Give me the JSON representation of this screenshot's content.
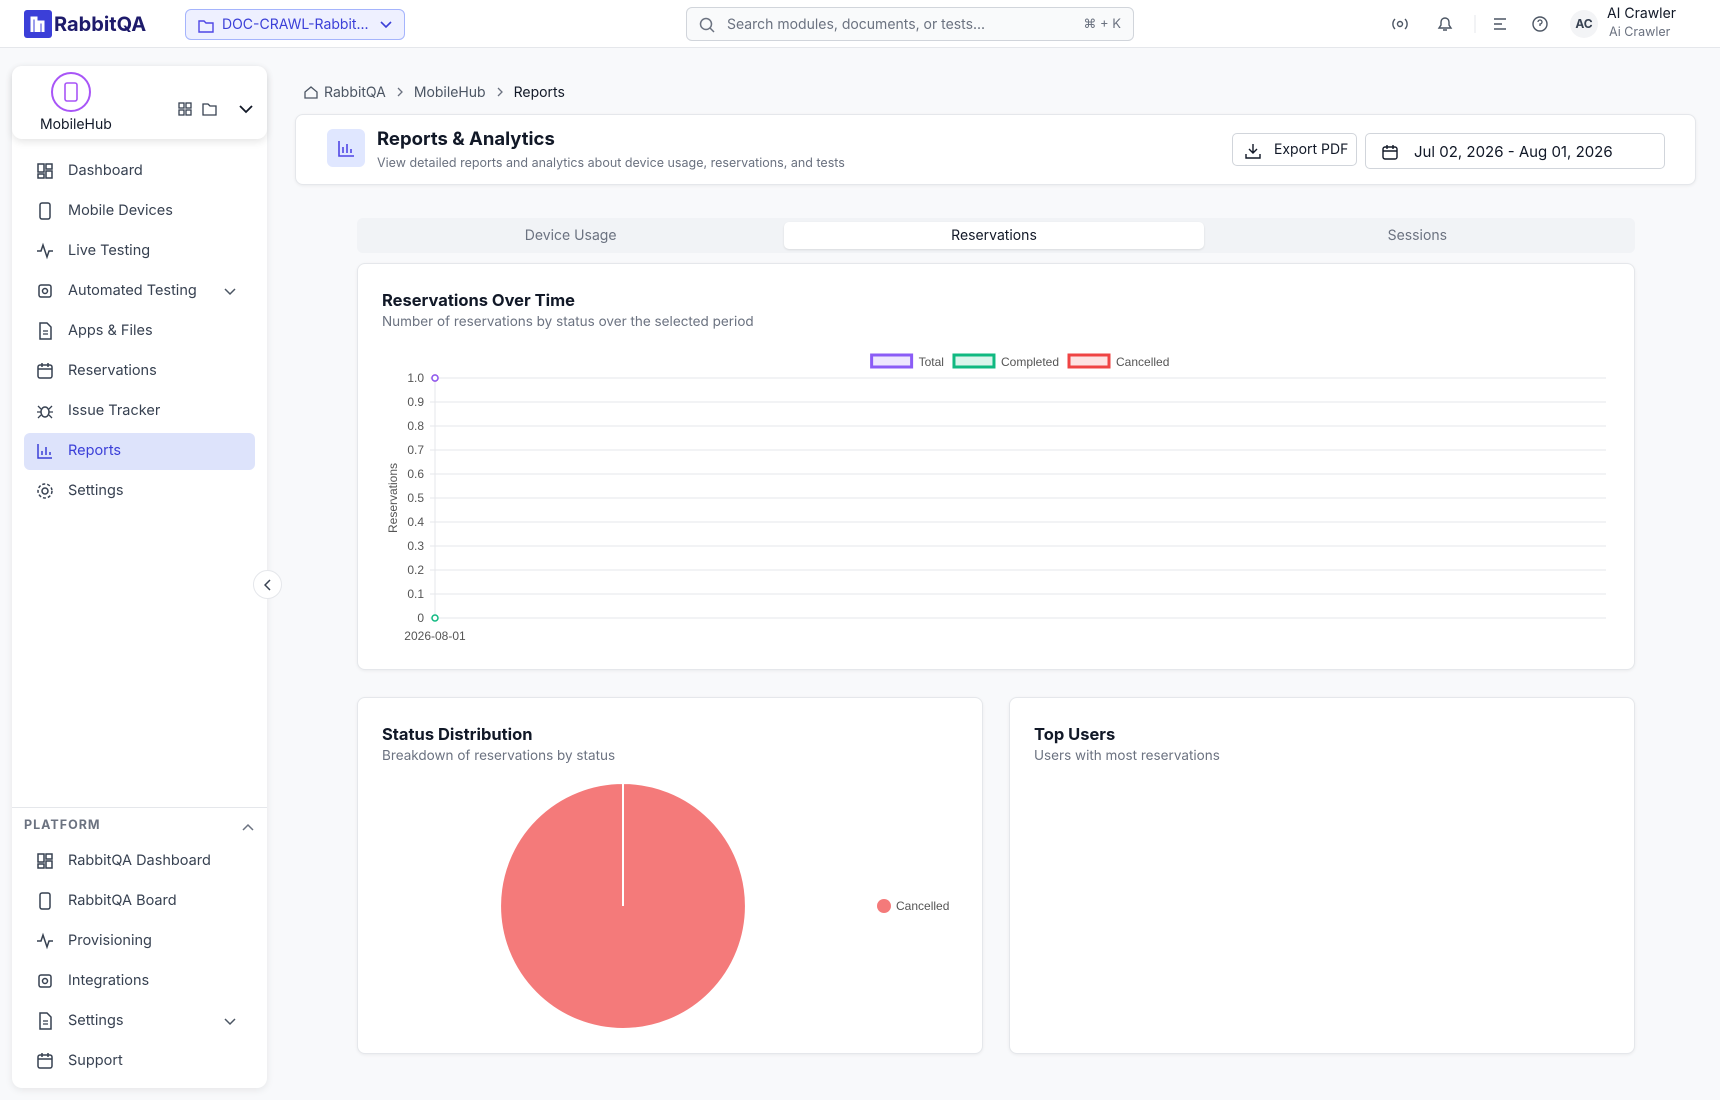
{
  "app": {
    "logo": "RabbitQA",
    "project": "DOC-CRAWL-Rabbit...",
    "search_placeholder": "Search modules, documents, or tests...",
    "shortcut": "⌘ + K",
    "user_initials": "AC",
    "user_name": "AI Crawler",
    "user_sub": "Ai Crawler"
  },
  "sidebar": {
    "module": "MobileHub",
    "nav": [
      {
        "label": "Dashboard"
      },
      {
        "label": "Mobile Devices"
      },
      {
        "label": "Live Testing"
      },
      {
        "label": "Automated Testing",
        "expandable": true
      },
      {
        "label": "Apps & Files"
      },
      {
        "label": "Reservations"
      },
      {
        "label": "Issue Tracker"
      },
      {
        "label": "Reports",
        "active": true
      },
      {
        "label": "Settings"
      }
    ],
    "platform_title": "PLATFORM",
    "platform": [
      {
        "label": "RabbitQA Dashboard"
      },
      {
        "label": "RabbitQA Board"
      },
      {
        "label": "Provisioning"
      },
      {
        "label": "Integrations"
      },
      {
        "label": "Settings",
        "expandable": true
      },
      {
        "label": "Support"
      }
    ]
  },
  "breadcrumb": [
    "RabbitQA",
    "MobileHub",
    "Reports"
  ],
  "page": {
    "title": "Reports & Analytics",
    "subtitle": "View detailed reports and analytics about device usage, reservations, and tests",
    "export": "Export PDF",
    "date_range": "Jul 02, 2026 - Aug 01, 2026"
  },
  "tabs": [
    {
      "label": "Device Usage"
    },
    {
      "label": "Reservations",
      "active": true
    },
    {
      "label": "Sessions"
    }
  ],
  "chart_data": [
    {
      "type": "line",
      "title": "Reservations Over Time",
      "subtitle": "Number of reservations by status over the selected period",
      "categories": [
        "2026-08-01"
      ],
      "ylabel": "Reservations",
      "series": [
        {
          "name": "Total",
          "color": "#8b5cf6",
          "values": [
            1
          ]
        },
        {
          "name": "Completed",
          "color": "#10b981",
          "values": [
            0
          ]
        },
        {
          "name": "Cancelled",
          "color": "#ef4444",
          "values": [
            1
          ]
        }
      ],
      "ylim": [
        0,
        1
      ],
      "yticks": [
        0,
        0.1,
        0.2,
        0.3,
        0.4,
        0.5,
        0.6,
        0.7,
        0.8,
        0.9,
        {
          "value": 1,
          "label": "1.0"
        }
      ],
      "grid": true,
      "legend": "top"
    },
    {
      "type": "pie",
      "title": "Status Distribution",
      "subtitle": "Breakdown of reservations by status",
      "categories": [
        "Cancelled"
      ],
      "values": [
        1
      ],
      "colors": [
        "#f47a7a"
      ],
      "legend": "right"
    }
  ],
  "top_users": {
    "title": "Top Users",
    "subtitle": "Users with most reservations"
  }
}
